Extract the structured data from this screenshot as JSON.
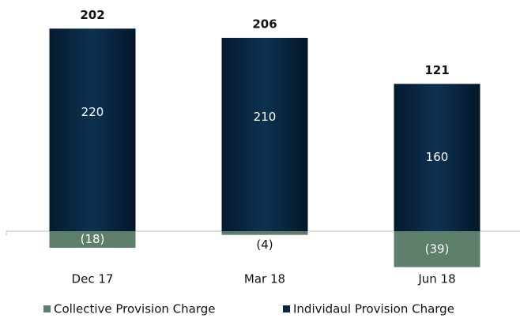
{
  "chart_data": {
    "type": "stacked-bar",
    "categories": [
      "Dec 17",
      "Mar 18",
      "Jun 18"
    ],
    "series": [
      {
        "name": "Collective Provision Charge",
        "color": "#5f7f6d",
        "values": [
          -18,
          -4,
          -39
        ],
        "value_labels": [
          "(18)",
          "(4)",
          "(39)"
        ]
      },
      {
        "name": "Individaul Provision Charge",
        "color": "#0a2742",
        "values": [
          220,
          210,
          160
        ]
      }
    ],
    "totals": [
      202,
      206,
      121
    ]
  }
}
